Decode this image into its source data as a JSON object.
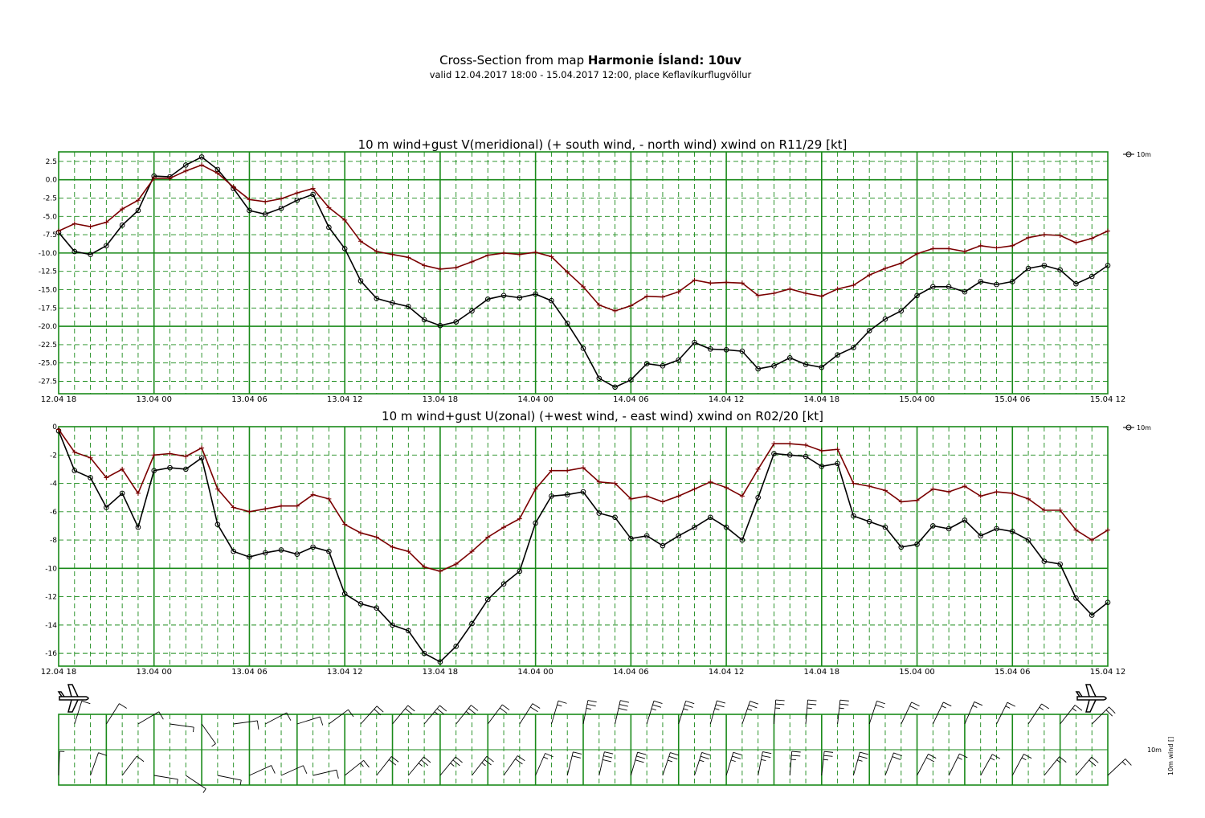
{
  "header": {
    "title_prefix": "Cross-Section from map ",
    "title_bold": "Harmonie Ísland: 10uv",
    "subtitle": "valid 12.04.2017 18:00 - 15.04.2017 12:00, place Keflavíkurflugvöllur"
  },
  "colors": {
    "grid": "#1a8a1a",
    "wind": "#000000",
    "gust": "#7a0000",
    "background": "#ffffff"
  },
  "icons": [
    "airplane-icon",
    "airplane-icon"
  ],
  "chart_data": [
    {
      "type": "line",
      "title": "10 m wind+gust V(meridional) (+ south wind, - north wind) xwind on R11/29 [kt]",
      "x_tick_labels": [
        "12.04 18",
        "13.04 00",
        "13.04 06",
        "13.04 12",
        "13.04 18",
        "14.04 00",
        "14.04 06",
        "14.04 12",
        "14.04 18",
        "15.04 00",
        "15.04 06",
        "15.04 12"
      ],
      "y_tick_labels": [
        "2.5",
        "0.0",
        "-2.5",
        "-5.0",
        "-7.5",
        "-10.0",
        "-12.5",
        "-15.0",
        "-17.5",
        "-20.0",
        "-22.5",
        "-25.0",
        "-27.5"
      ],
      "ylim": [
        -29.2,
        3.8
      ],
      "legend": "10m",
      "legend_position": "top-right",
      "grid": true,
      "x_hours": [
        0,
        1,
        2,
        3,
        4,
        5,
        6,
        7,
        8,
        9,
        10,
        11,
        12,
        13,
        14,
        15,
        16,
        17,
        18,
        19,
        20,
        21,
        22,
        23,
        24,
        25,
        26,
        27,
        28,
        29,
        30,
        31,
        32,
        33,
        34,
        35,
        36,
        37,
        38,
        39,
        40,
        41,
        42,
        43,
        44,
        45,
        46,
        47,
        48,
        49,
        50,
        51,
        52,
        53,
        54,
        55,
        56,
        57,
        58,
        59,
        60,
        61,
        62,
        63,
        64,
        65,
        66
      ],
      "series": [
        {
          "name": "10m",
          "marker": "circle",
          "values": [
            -7.2,
            -9.8,
            -10.2,
            -9.0,
            -6.2,
            -4.2,
            0.5,
            0.4,
            2.0,
            3.1,
            1.4,
            -1.2,
            -4.2,
            -4.7,
            -3.9,
            -2.8,
            -2.0,
            -6.5,
            -9.4,
            -13.8,
            -16.2,
            -16.8,
            -17.3,
            -19.1,
            -19.9,
            -19.4,
            -17.9,
            -16.3,
            -15.8,
            -16.1,
            -15.6,
            -16.5,
            -19.6,
            -23.0,
            -27.1,
            -28.3,
            -27.3,
            -25.1,
            -25.4,
            -24.6,
            -22.2,
            -23.1,
            -23.2,
            -23.4,
            -25.8,
            -25.4,
            -24.3,
            -25.2,
            -25.6,
            -23.9,
            -22.9,
            -20.6,
            -19.0,
            -17.9,
            -15.8,
            -14.6,
            -14.6,
            -15.3,
            -13.9,
            -14.3,
            -13.9,
            -12.1,
            -11.7,
            -12.3,
            -14.2,
            -13.2,
            -11.7
          ]
        },
        {
          "name": "gust",
          "marker": "plus",
          "values": [
            -7.0,
            -6.0,
            -6.4,
            -5.8,
            -4.0,
            -2.8,
            0.2,
            0.2,
            1.2,
            2.0,
            0.9,
            -1.0,
            -2.7,
            -3.0,
            -2.6,
            -1.8,
            -1.2,
            -3.8,
            -5.5,
            -8.4,
            -9.8,
            -10.2,
            -10.6,
            -11.7,
            -12.2,
            -12.0,
            -11.2,
            -10.3,
            -10.0,
            -10.2,
            -9.9,
            -10.5,
            -12.6,
            -14.6,
            -17.1,
            -17.9,
            -17.2,
            -15.9,
            -16.0,
            -15.3,
            -13.7,
            -14.1,
            -14.0,
            -14.1,
            -15.8,
            -15.5,
            -14.9,
            -15.5,
            -15.9,
            -14.9,
            -14.4,
            -13.0,
            -12.1,
            -11.4,
            -10.1,
            -9.4,
            -9.4,
            -9.8,
            -9.0,
            -9.3,
            -9.0,
            -7.9,
            -7.5,
            -7.6,
            -8.6,
            -8.0,
            -7.0
          ]
        }
      ]
    },
    {
      "type": "line",
      "title": "10 m wind+gust U(zonal) (+west wind, - east wind) xwind on R02/20 [kt]",
      "x_tick_labels": [
        "12.04 18",
        "13.04 00",
        "13.04 06",
        "13.04 12",
        "13.04 18",
        "14.04 00",
        "14.04 06",
        "14.04 12",
        "14.04 18",
        "15.04 00",
        "15.04 06",
        "15.04 12"
      ],
      "y_tick_labels": [
        "0",
        "-2",
        "-4",
        "-6",
        "-8",
        "-10",
        "-12",
        "-14",
        "-16"
      ],
      "ylim": [
        -16.9,
        0
      ],
      "legend": "10m",
      "legend_position": "top-right",
      "grid": true,
      "x_hours": [
        0,
        1,
        2,
        3,
        4,
        5,
        6,
        7,
        8,
        9,
        10,
        11,
        12,
        13,
        14,
        15,
        16,
        17,
        18,
        19,
        20,
        21,
        22,
        23,
        24,
        25,
        26,
        27,
        28,
        29,
        30,
        31,
        32,
        33,
        34,
        35,
        36,
        37,
        38,
        39,
        40,
        41,
        42,
        43,
        44,
        45,
        46,
        47,
        48,
        49,
        50,
        51,
        52,
        53,
        54,
        55,
        56,
        57,
        58,
        59,
        60,
        61,
        62,
        63,
        64,
        65,
        66
      ],
      "series": [
        {
          "name": "10m",
          "marker": "circle",
          "values": [
            -0.3,
            -3.1,
            -3.6,
            -5.7,
            -4.7,
            -7.1,
            -3.1,
            -2.9,
            -3.0,
            -2.2,
            -6.9,
            -8.8,
            -9.2,
            -8.9,
            -8.7,
            -9.0,
            -8.5,
            -8.8,
            -11.8,
            -12.5,
            -12.8,
            -14.0,
            -14.4,
            -16.0,
            -16.6,
            -15.5,
            -13.9,
            -12.2,
            -11.1,
            -10.2,
            -6.8,
            -4.9,
            -4.8,
            -4.6,
            -6.1,
            -6.4,
            -7.9,
            -7.7,
            -8.4,
            -7.7,
            -7.1,
            -6.4,
            -7.1,
            -8.0,
            -5.0,
            -1.9,
            -2.0,
            -2.1,
            -2.8,
            -2.6,
            -6.3,
            -6.7,
            -7.1,
            -8.5,
            -8.3,
            -7.0,
            -7.2,
            -6.6,
            -7.7,
            -7.2,
            -7.4,
            -8.0,
            -9.5,
            -9.7,
            -12.1,
            -13.3,
            -12.4
          ]
        },
        {
          "name": "gust",
          "marker": "plus",
          "values": [
            -0.2,
            -1.8,
            -2.2,
            -3.6,
            -3.0,
            -4.7,
            -2.0,
            -1.9,
            -2.1,
            -1.5,
            -4.4,
            -5.7,
            -6.0,
            -5.8,
            -5.6,
            -5.6,
            -4.8,
            -5.1,
            -6.9,
            -7.5,
            -7.8,
            -8.5,
            -8.8,
            -9.9,
            -10.2,
            -9.7,
            -8.8,
            -7.8,
            -7.1,
            -6.5,
            -4.4,
            -3.1,
            -3.1,
            -2.9,
            -3.9,
            -4.0,
            -5.1,
            -4.9,
            -5.3,
            -4.9,
            -4.4,
            -3.9,
            -4.3,
            -4.9,
            -3.0,
            -1.2,
            -1.2,
            -1.3,
            -1.7,
            -1.6,
            -4.0,
            -4.2,
            -4.5,
            -5.3,
            -5.2,
            -4.4,
            -4.6,
            -4.2,
            -4.9,
            -4.6,
            -4.7,
            -5.1,
            -5.9,
            -5.9,
            -7.3,
            -8.0,
            -7.3
          ]
        }
      ]
    },
    {
      "type": "wind-barbs",
      "legend": "10m wind []",
      "legend_short": "10m",
      "x_hours": [
        0,
        1,
        2,
        3,
        4,
        5,
        6,
        7,
        8,
        9,
        10,
        11,
        12,
        13,
        14,
        15,
        16,
        17,
        18,
        19,
        20,
        21,
        22,
        23,
        24,
        25,
        26,
        27,
        28,
        29,
        30,
        31,
        32,
        33,
        34,
        35,
        36,
        37,
        38,
        39,
        40,
        41,
        42,
        43,
        44,
        45,
        46,
        47,
        48,
        49,
        50,
        51,
        52,
        53,
        54,
        55,
        56,
        57,
        58,
        59,
        60,
        61,
        62,
        63,
        64,
        65,
        66
      ],
      "u_values": [
        -0.3,
        -3.1,
        -3.6,
        -5.7,
        -4.7,
        -7.1,
        -3.1,
        -2.9,
        -3.0,
        -2.2,
        -6.9,
        -8.8,
        -9.2,
        -8.9,
        -8.7,
        -9.0,
        -8.5,
        -8.8,
        -11.8,
        -12.5,
        -12.8,
        -14.0,
        -14.4,
        -16.0,
        -16.6,
        -15.5,
        -13.9,
        -12.2,
        -11.1,
        -10.2,
        -6.8,
        -4.9,
        -4.8,
        -4.6,
        -6.1,
        -6.4,
        -7.9,
        -7.7,
        -8.4,
        -7.7,
        -7.1,
        -6.4,
        -7.1,
        -8.0,
        -5.0,
        -1.9,
        -2.0,
        -2.1,
        -2.8,
        -2.6,
        -6.3,
        -6.7,
        -7.1,
        -8.5,
        -8.3,
        -7.0,
        -7.2,
        -6.6,
        -7.7,
        -7.2,
        -7.4,
        -8.0,
        -9.5,
        -9.7,
        -12.1,
        -13.3,
        -12.4
      ],
      "v_values": [
        -7.2,
        -9.8,
        -10.2,
        -9.0,
        -6.2,
        -4.2,
        0.5,
        0.4,
        2.0,
        3.1,
        1.4,
        -1.2,
        -4.2,
        -4.7,
        -3.9,
        -2.8,
        -2.0,
        -6.5,
        -9.4,
        -13.8,
        -16.2,
        -16.8,
        -17.3,
        -19.1,
        -19.9,
        -19.4,
        -17.9,
        -16.3,
        -15.8,
        -16.1,
        -15.6,
        -16.5,
        -19.6,
        -23.0,
        -27.1,
        -28.3,
        -27.3,
        -25.1,
        -25.4,
        -24.6,
        -22.2,
        -23.1,
        -23.2,
        -23.4,
        -25.8,
        -25.4,
        -24.3,
        -25.2,
        -25.6,
        -23.9,
        -22.9,
        -20.6,
        -19.0,
        -17.9,
        -15.8,
        -14.6,
        -14.6,
        -15.3,
        -13.9,
        -14.3,
        -13.9,
        -12.1,
        -11.7,
        -12.3,
        -14.2,
        -13.2,
        -11.7
      ]
    }
  ]
}
